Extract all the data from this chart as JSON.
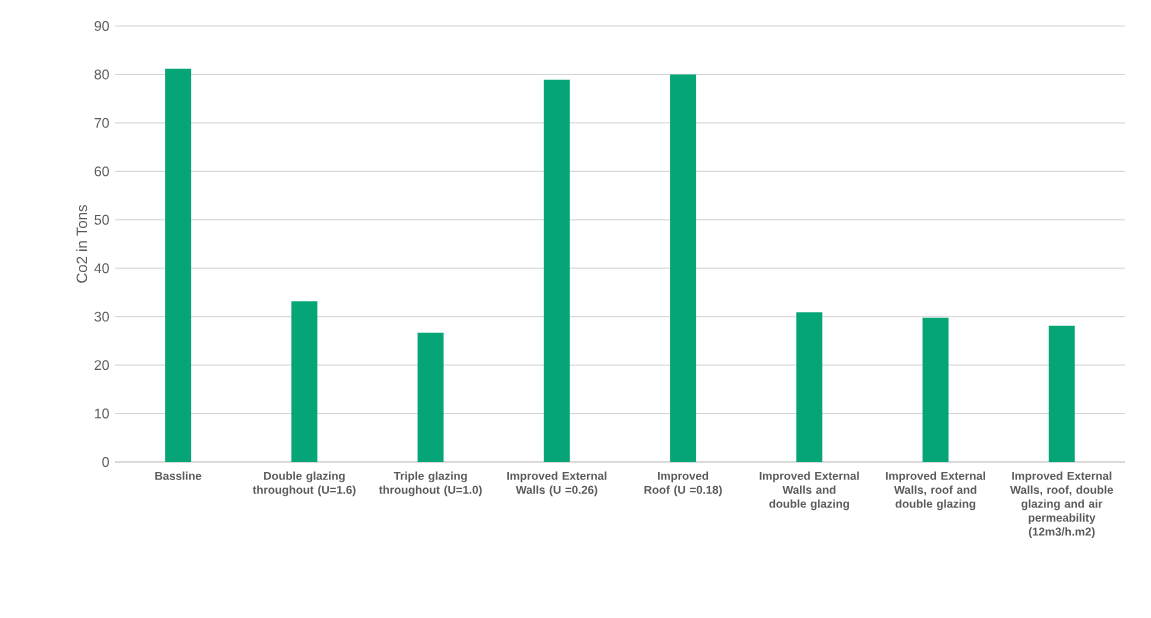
{
  "chart_data": {
    "type": "bar",
    "ylabel": "Co2 in Tons",
    "categories": [
      "Bassline",
      "Double glazing throughout (U=1.6)",
      "Triple glazing throughout (U=1.0)",
      "Improved External Walls (U =0.26)",
      "Improved Roof (U =0.18)",
      "Improved External Walls and double glazing",
      "Improved External Walls, roof and double glazing",
      "Improved External Walls, roof, double glazing and air permeability (12m3/h.m2)"
    ],
    "values": [
      81.2,
      33.2,
      26.7,
      78.9,
      80.0,
      30.9,
      29.8,
      28.1
    ],
    "color": "#05a577",
    "ylim": [
      0,
      90
    ],
    "yticks": [
      0,
      10,
      20,
      30,
      40,
      50,
      60,
      70,
      80,
      90
    ],
    "grid": "y"
  }
}
